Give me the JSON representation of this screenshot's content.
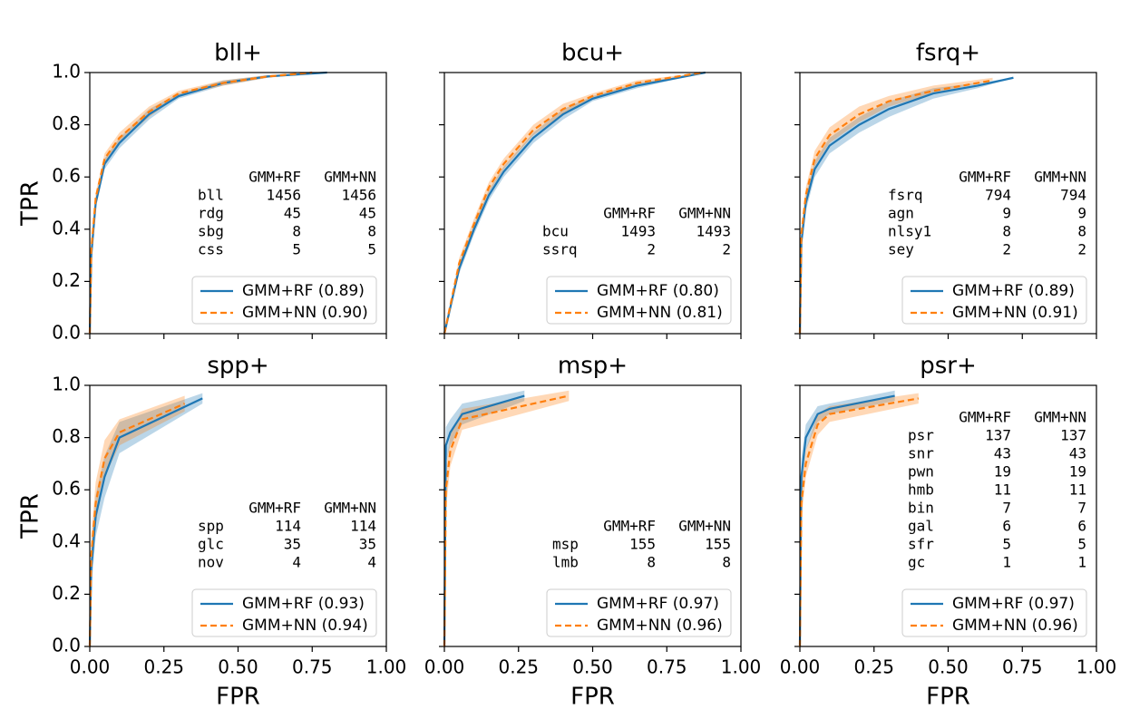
{
  "chart_data": [
    {
      "type": "line",
      "title": "bll+",
      "ylabel": "TPR",
      "xlim": [
        0,
        1
      ],
      "ylim": [
        0,
        1
      ],
      "legend": "lower right",
      "xticks": [
        0,
        0.25,
        0.5,
        0.75,
        1
      ],
      "yticks": [
        {
          "value": 0,
          "label": "0.0"
        },
        {
          "value": 0.2,
          "label": "0.2"
        },
        {
          "value": 0.4,
          "label": "0.4"
        },
        {
          "value": 0.6,
          "label": "0.6"
        },
        {
          "value": 0.8,
          "label": "0.8"
        },
        {
          "value": 1,
          "label": "1.0"
        }
      ],
      "series": [
        {
          "name": "GMM+RF (0.89)",
          "color": "#1f77b4",
          "dash": "solid",
          "x": [
            0,
            0.005,
            0.02,
            0.05,
            0.1,
            0.2,
            0.3,
            0.45,
            0.6,
            0.8
          ],
          "values": [
            0,
            0.3,
            0.5,
            0.65,
            0.73,
            0.84,
            0.91,
            0.96,
            0.985,
            1.0
          ],
          "lower": [
            0,
            0.27,
            0.48,
            0.63,
            0.71,
            0.82,
            0.9,
            0.95,
            0.98,
            1.0
          ],
          "upper": [
            0,
            0.33,
            0.52,
            0.67,
            0.75,
            0.86,
            0.92,
            0.97,
            0.99,
            1.0
          ]
        },
        {
          "name": "GMM+NN (0.90)",
          "color": "#ff7f0e",
          "dash": "dashed",
          "x": [
            0,
            0.005,
            0.02,
            0.05,
            0.1,
            0.2,
            0.3,
            0.45,
            0.6,
            0.75
          ],
          "values": [
            0,
            0.32,
            0.52,
            0.67,
            0.75,
            0.85,
            0.92,
            0.96,
            0.985,
            1.0
          ],
          "lower": [
            0,
            0.29,
            0.5,
            0.65,
            0.73,
            0.83,
            0.91,
            0.95,
            0.98,
            1.0
          ],
          "upper": [
            0,
            0.35,
            0.54,
            0.69,
            0.77,
            0.87,
            0.93,
            0.97,
            0.99,
            1.0
          ]
        }
      ],
      "table": {
        "columns": [
          "GMM+RF",
          "GMM+NN"
        ],
        "rows": [
          {
            "label": "bll",
            "values": [
              1456,
              1456
            ]
          },
          {
            "label": "rdg",
            "values": [
              45,
              45
            ]
          },
          {
            "label": "sbg",
            "values": [
              8,
              8
            ]
          },
          {
            "label": "css",
            "values": [
              5,
              5
            ]
          }
        ]
      }
    },
    {
      "type": "line",
      "title": "bcu+",
      "xlim": [
        0,
        1
      ],
      "ylim": [
        0,
        1
      ],
      "legend": "lower right",
      "xticks": [
        0,
        0.25,
        0.5,
        0.75,
        1
      ],
      "yticks": [
        0,
        0.2,
        0.4,
        0.6,
        0.8,
        1
      ],
      "series": [
        {
          "name": "GMM+RF (0.80)",
          "color": "#1f77b4",
          "dash": "solid",
          "x": [
            0,
            0.05,
            0.1,
            0.15,
            0.2,
            0.3,
            0.4,
            0.5,
            0.65,
            0.88
          ],
          "values": [
            0,
            0.25,
            0.4,
            0.53,
            0.62,
            0.75,
            0.84,
            0.9,
            0.95,
            1.0
          ],
          "lower": [
            0,
            0.23,
            0.38,
            0.51,
            0.6,
            0.73,
            0.82,
            0.89,
            0.94,
            1.0
          ],
          "upper": [
            0,
            0.27,
            0.42,
            0.55,
            0.64,
            0.77,
            0.86,
            0.91,
            0.96,
            1.0
          ]
        },
        {
          "name": "GMM+NN (0.81)",
          "color": "#ff7f0e",
          "dash": "dashed",
          "x": [
            0,
            0.05,
            0.1,
            0.15,
            0.2,
            0.3,
            0.4,
            0.5,
            0.65,
            0.87
          ],
          "values": [
            0,
            0.27,
            0.42,
            0.56,
            0.65,
            0.78,
            0.86,
            0.91,
            0.96,
            1.0
          ],
          "lower": [
            0,
            0.25,
            0.4,
            0.54,
            0.63,
            0.76,
            0.84,
            0.9,
            0.95,
            1.0
          ],
          "upper": [
            0,
            0.29,
            0.44,
            0.58,
            0.67,
            0.8,
            0.88,
            0.92,
            0.97,
            1.0
          ]
        }
      ],
      "table": {
        "columns": [
          "GMM+RF",
          "GMM+NN"
        ],
        "rows": [
          {
            "label": "bcu",
            "values": [
              1493,
              1493
            ]
          },
          {
            "label": "ssrq",
            "values": [
              2,
              2
            ]
          }
        ]
      }
    },
    {
      "type": "line",
      "title": "fsrq+",
      "xlim": [
        0,
        1
      ],
      "ylim": [
        0,
        1
      ],
      "legend": "lower right",
      "xticks": [
        0,
        0.25,
        0.5,
        0.75,
        1
      ],
      "yticks": [
        0,
        0.2,
        0.4,
        0.6,
        0.8,
        1
      ],
      "series": [
        {
          "name": "GMM+RF (0.89)",
          "color": "#1f77b4",
          "dash": "solid",
          "x": [
            0,
            0.005,
            0.02,
            0.05,
            0.1,
            0.2,
            0.3,
            0.45,
            0.6,
            0.72
          ],
          "values": [
            0,
            0.35,
            0.5,
            0.63,
            0.72,
            0.8,
            0.86,
            0.92,
            0.95,
            0.98
          ],
          "lower": [
            0,
            0.32,
            0.47,
            0.6,
            0.69,
            0.77,
            0.83,
            0.9,
            0.94,
            0.98
          ],
          "upper": [
            0,
            0.38,
            0.53,
            0.66,
            0.75,
            0.83,
            0.89,
            0.94,
            0.96,
            0.98
          ]
        },
        {
          "name": "GMM+NN (0.91)",
          "color": "#ff7f0e",
          "dash": "dashed",
          "x": [
            0,
            0.005,
            0.02,
            0.05,
            0.1,
            0.2,
            0.3,
            0.45,
            0.65
          ],
          "values": [
            0,
            0.38,
            0.53,
            0.67,
            0.76,
            0.84,
            0.89,
            0.93,
            0.97
          ],
          "lower": [
            0,
            0.35,
            0.5,
            0.64,
            0.73,
            0.81,
            0.87,
            0.92,
            0.97
          ],
          "upper": [
            0,
            0.41,
            0.56,
            0.7,
            0.79,
            0.87,
            0.91,
            0.95,
            0.98
          ]
        }
      ],
      "table": {
        "columns": [
          "GMM+RF",
          "GMM+NN"
        ],
        "rows": [
          {
            "label": "fsrq",
            "values": [
              794,
              794
            ]
          },
          {
            "label": "agn",
            "values": [
              9,
              9
            ]
          },
          {
            "label": "nlsy1",
            "values": [
              8,
              8
            ]
          },
          {
            "label": "sey",
            "values": [
              2,
              2
            ]
          }
        ]
      }
    },
    {
      "type": "line",
      "title": "spp+",
      "xlabel": "FPR",
      "ylabel": "TPR",
      "xlim": [
        0,
        1
      ],
      "ylim": [
        0,
        1
      ],
      "legend": "lower right",
      "xticks": [
        {
          "value": 0,
          "label": "0.00"
        },
        {
          "value": 0.25,
          "label": "0.25"
        },
        {
          "value": 0.5,
          "label": "0.50"
        },
        {
          "value": 0.75,
          "label": "0.75"
        },
        {
          "value": 1,
          "label": "1.00"
        }
      ],
      "yticks": [
        {
          "value": 0,
          "label": "0.0"
        },
        {
          "value": 0.2,
          "label": "0.2"
        },
        {
          "value": 0.4,
          "label": "0.4"
        },
        {
          "value": 0.6,
          "label": "0.6"
        },
        {
          "value": 0.8,
          "label": "0.8"
        },
        {
          "value": 1,
          "label": "1.0"
        }
      ],
      "series": [
        {
          "name": "GMM+RF (0.93)",
          "color": "#1f77b4",
          "dash": "solid",
          "x": [
            0,
            0.005,
            0.02,
            0.05,
            0.1,
            0.38
          ],
          "values": [
            0,
            0.3,
            0.5,
            0.65,
            0.8,
            0.95
          ],
          "lower": [
            0,
            0.22,
            0.42,
            0.57,
            0.74,
            0.93
          ],
          "upper": [
            0,
            0.38,
            0.58,
            0.73,
            0.86,
            0.97
          ]
        },
        {
          "name": "GMM+NN (0.94)",
          "color": "#ff7f0e",
          "dash": "dashed",
          "x": [
            0,
            0.005,
            0.02,
            0.05,
            0.1,
            0.32
          ],
          "values": [
            0,
            0.35,
            0.55,
            0.72,
            0.82,
            0.93
          ],
          "lower": [
            0,
            0.27,
            0.47,
            0.65,
            0.77,
            0.9
          ],
          "upper": [
            0,
            0.43,
            0.63,
            0.79,
            0.87,
            0.96
          ]
        }
      ],
      "table": {
        "columns": [
          "GMM+RF",
          "GMM+NN"
        ],
        "rows": [
          {
            "label": "spp",
            "values": [
              114,
              114
            ]
          },
          {
            "label": "glc",
            "values": [
              35,
              35
            ]
          },
          {
            "label": "nov",
            "values": [
              4,
              4
            ]
          }
        ]
      }
    },
    {
      "type": "line",
      "title": "msp+",
      "xlabel": "FPR",
      "xlim": [
        0,
        1
      ],
      "ylim": [
        0,
        1
      ],
      "legend": "lower right",
      "xticks": [
        {
          "value": 0,
          "label": "0.00"
        },
        {
          "value": 0.25,
          "label": "0.25"
        },
        {
          "value": 0.5,
          "label": "0.50"
        },
        {
          "value": 0.75,
          "label": "0.75"
        },
        {
          "value": 1,
          "label": "1.00"
        }
      ],
      "yticks": [
        0,
        0.2,
        0.4,
        0.6,
        0.8,
        1
      ],
      "series": [
        {
          "name": "GMM+RF (0.97)",
          "color": "#1f77b4",
          "dash": "solid",
          "x": [
            0,
            0.005,
            0.02,
            0.06,
            0.27
          ],
          "values": [
            0,
            0.77,
            0.82,
            0.89,
            0.96
          ],
          "lower": [
            0,
            0.7,
            0.77,
            0.85,
            0.94
          ],
          "upper": [
            0,
            0.84,
            0.87,
            0.93,
            0.98
          ]
        },
        {
          "name": "GMM+NN (0.96)",
          "color": "#ff7f0e",
          "dash": "dashed",
          "x": [
            0,
            0.005,
            0.02,
            0.06,
            0.42
          ],
          "values": [
            0,
            0.6,
            0.75,
            0.87,
            0.96
          ],
          "lower": [
            0,
            0.52,
            0.69,
            0.83,
            0.94
          ],
          "upper": [
            0,
            0.68,
            0.81,
            0.91,
            0.98
          ]
        }
      ],
      "table": {
        "columns": [
          "GMM+RF",
          "GMM+NN"
        ],
        "rows": [
          {
            "label": "msp",
            "values": [
              155,
              155
            ]
          },
          {
            "label": "lmb",
            "values": [
              8,
              8
            ]
          }
        ]
      }
    },
    {
      "type": "line",
      "title": "psr+",
      "xlabel": "FPR",
      "xlim": [
        0,
        1
      ],
      "ylim": [
        0,
        1
      ],
      "legend": "lower right",
      "xticks": [
        {
          "value": 0,
          "label": "0.00"
        },
        {
          "value": 0.25,
          "label": "0.25"
        },
        {
          "value": 0.5,
          "label": "0.50"
        },
        {
          "value": 0.75,
          "label": "0.75"
        },
        {
          "value": 1,
          "label": "1.00"
        }
      ],
      "yticks": [
        0,
        0.2,
        0.4,
        0.6,
        0.8,
        1
      ],
      "series": [
        {
          "name": "GMM+RF (0.97)",
          "color": "#1f77b4",
          "dash": "solid",
          "x": [
            0,
            0.005,
            0.02,
            0.06,
            0.1,
            0.32
          ],
          "values": [
            0,
            0.65,
            0.8,
            0.89,
            0.91,
            0.96
          ],
          "lower": [
            0,
            0.58,
            0.75,
            0.86,
            0.89,
            0.94
          ],
          "upper": [
            0,
            0.72,
            0.85,
            0.92,
            0.93,
            0.98
          ]
        },
        {
          "name": "GMM+NN (0.96)",
          "color": "#ff7f0e",
          "dash": "dashed",
          "x": [
            0,
            0.005,
            0.02,
            0.06,
            0.1,
            0.4
          ],
          "values": [
            0,
            0.55,
            0.7,
            0.85,
            0.89,
            0.95
          ],
          "lower": [
            0,
            0.48,
            0.65,
            0.81,
            0.86,
            0.93
          ],
          "upper": [
            0,
            0.62,
            0.75,
            0.89,
            0.92,
            0.97
          ]
        }
      ],
      "table": {
        "columns": [
          "GMM+RF",
          "GMM+NN"
        ],
        "rows": [
          {
            "label": "psr",
            "values": [
              137,
              137
            ]
          },
          {
            "label": "snr",
            "values": [
              43,
              43
            ]
          },
          {
            "label": "pwn",
            "values": [
              19,
              19
            ]
          },
          {
            "label": "hmb",
            "values": [
              11,
              11
            ]
          },
          {
            "label": "bin",
            "values": [
              7,
              7
            ]
          },
          {
            "label": "gal",
            "values": [
              6,
              6
            ]
          },
          {
            "label": "sfr",
            "values": [
              5,
              5
            ]
          },
          {
            "label": "gc",
            "values": [
              1,
              1
            ]
          }
        ]
      }
    }
  ]
}
